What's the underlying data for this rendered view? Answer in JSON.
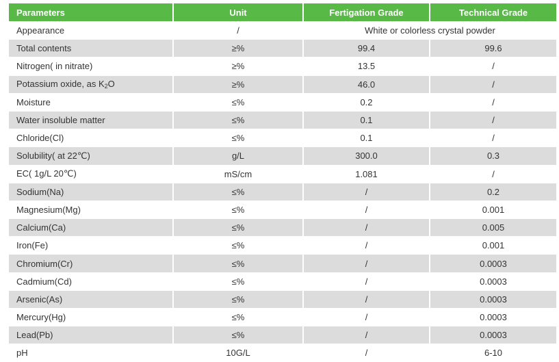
{
  "table": {
    "headers": [
      "Parameters",
      "Unit",
      "Fertigation Grade",
      "Technical Grade"
    ],
    "appearance": {
      "parameter": "Appearance",
      "unit": "/",
      "value": "White or colorless crystal powder"
    },
    "rows": [
      {
        "parameter": "Total contents",
        "unit": "≥%",
        "fertigation": "99.4",
        "technical": "99.6"
      },
      {
        "parameter": "Nitrogen( in nitrate)",
        "unit": "≥%",
        "fertigation": "13.5",
        "technical": "/"
      },
      {
        "parameter_prefix": "Potassium oxide, as K",
        "parameter_sub": "2",
        "parameter_suffix": "O",
        "unit": "≥%",
        "fertigation": "46.0",
        "technical": "/"
      },
      {
        "parameter": "Moisture",
        "unit": "≤%",
        "fertigation": "0.2",
        "technical": "/"
      },
      {
        "parameter": "Water insoluble matter",
        "unit": "≤%",
        "fertigation": "0.1",
        "technical": "/"
      },
      {
        "parameter": "Chloride(Cl)",
        "unit": "≤%",
        "fertigation": "0.1",
        "technical": "/"
      },
      {
        "parameter": "Solubility( at 22℃)",
        "unit": "g/L",
        "fertigation": "300.0",
        "technical": "0.3"
      },
      {
        "parameter": "EC( 1g/L 20℃)",
        "unit": "mS/cm",
        "fertigation": "1.081",
        "technical": "/"
      },
      {
        "parameter": "Sodium(Na)",
        "unit": "≤%",
        "fertigation": "/",
        "technical": "0.2"
      },
      {
        "parameter": "Magnesium(Mg)",
        "unit": "≤%",
        "fertigation": "/",
        "technical": "0.001"
      },
      {
        "parameter": "Calcium(Ca)",
        "unit": "≤%",
        "fertigation": "/",
        "technical": "0.005"
      },
      {
        "parameter": "Iron(Fe)",
        "unit": "≤%",
        "fertigation": "/",
        "technical": "0.001"
      },
      {
        "parameter": "Chromium(Cr)",
        "unit": "≤%",
        "fertigation": "/",
        "technical": "0.0003"
      },
      {
        "parameter": "Cadmium(Cd)",
        "unit": "≤%",
        "fertigation": "/",
        "technical": "0.0003"
      },
      {
        "parameter": "Arsenic(As)",
        "unit": "≤%",
        "fertigation": "/",
        "technical": "0.0003"
      },
      {
        "parameter": "Mercury(Hg)",
        "unit": "≤%",
        "fertigation": "/",
        "technical": "0.0003"
      },
      {
        "parameter": "Lead(Pb)",
        "unit": "≤%",
        "fertigation": "/",
        "technical": "0.0003"
      },
      {
        "parameter": "pH",
        "unit": "10G/L",
        "fertigation": "/",
        "technical": "6-10"
      }
    ],
    "colors": {
      "header_bg": "#58b947",
      "header_text": "#ffffff",
      "row_alt_bg": "#dcdcdc",
      "row_bg": "#ffffff",
      "text": "#333333"
    }
  }
}
